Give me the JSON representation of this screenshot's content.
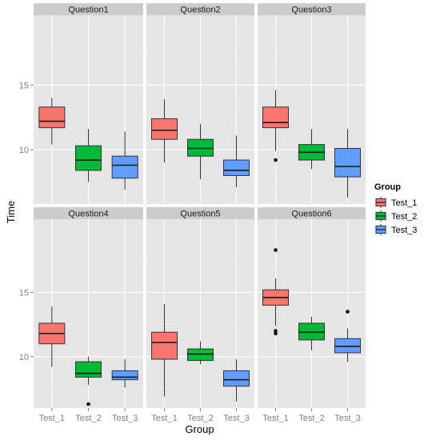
{
  "chart_data": {
    "type": "boxplot",
    "xlabel": "Group",
    "ylabel": "Time",
    "categories": [
      "Test_1",
      "Test_2",
      "Test_3"
    ],
    "y_ticks": [
      10,
      15
    ],
    "facet_ylim_top": [
      5.8,
      20.4
    ],
    "facet_ylim_bottom": [
      6.0,
      20.7
    ],
    "grid": true,
    "legend": {
      "title": "Group",
      "position": "right",
      "entries": [
        "Test_1",
        "Test_2",
        "Test_3"
      ]
    },
    "colors": {
      "Test_1": "#F8766D",
      "Test_2": "#00BA38",
      "Test_3": "#619CFF",
      "panel_bg": "#E5E5E5",
      "strip_bg": "#CCCCCC",
      "grid_major": "#FFFFFF",
      "grid_minor": "#F0F0F0"
    },
    "facets": [
      {
        "title": "Question1",
        "boxes": [
          {
            "group": "Test_1",
            "whisker_low": 10.4,
            "q1": 11.7,
            "median": 12.2,
            "q3": 13.3,
            "whisker_high": 14.0,
            "outliers": []
          },
          {
            "group": "Test_2",
            "whisker_low": 7.5,
            "q1": 8.4,
            "median": 9.2,
            "q3": 10.3,
            "whisker_high": 11.6,
            "outliers": []
          },
          {
            "group": "Test_3",
            "whisker_low": 6.9,
            "q1": 7.8,
            "median": 8.8,
            "q3": 9.5,
            "whisker_high": 11.4,
            "outliers": []
          }
        ]
      },
      {
        "title": "Question2",
        "boxes": [
          {
            "group": "Test_1",
            "whisker_low": 9.0,
            "q1": 10.8,
            "median": 11.5,
            "q3": 12.4,
            "whisker_high": 13.9,
            "outliers": []
          },
          {
            "group": "Test_2",
            "whisker_low": 7.7,
            "q1": 9.5,
            "median": 10.1,
            "q3": 10.8,
            "whisker_high": 12.0,
            "outliers": []
          },
          {
            "group": "Test_3",
            "whisker_low": 7.1,
            "q1": 8.0,
            "median": 8.4,
            "q3": 9.2,
            "whisker_high": 11.1,
            "outliers": []
          }
        ]
      },
      {
        "title": "Question3",
        "boxes": [
          {
            "group": "Test_1",
            "whisker_low": 9.9,
            "q1": 11.7,
            "median": 12.1,
            "q3": 13.3,
            "whisker_high": 14.6,
            "outliers": [
              9.2
            ]
          },
          {
            "group": "Test_2",
            "whisker_low": 8.5,
            "q1": 9.2,
            "median": 9.8,
            "q3": 10.4,
            "whisker_high": 11.6,
            "outliers": []
          },
          {
            "group": "Test_3",
            "whisker_low": 6.3,
            "q1": 7.9,
            "median": 8.7,
            "q3": 10.1,
            "whisker_high": 11.6,
            "outliers": []
          }
        ]
      },
      {
        "title": "Question4",
        "boxes": [
          {
            "group": "Test_1",
            "whisker_low": 9.2,
            "q1": 11.0,
            "median": 11.8,
            "q3": 12.6,
            "whisker_high": 13.9,
            "outliers": []
          },
          {
            "group": "Test_2",
            "whisker_low": 7.8,
            "q1": 8.4,
            "median": 8.7,
            "q3": 9.6,
            "whisker_high": 10.0,
            "outliers": [
              6.3
            ]
          },
          {
            "group": "Test_3",
            "whisker_low": 7.6,
            "q1": 8.2,
            "median": 8.4,
            "q3": 8.9,
            "whisker_high": 9.8,
            "outliers": []
          }
        ]
      },
      {
        "title": "Question5",
        "boxes": [
          {
            "group": "Test_1",
            "whisker_low": 6.9,
            "q1": 9.8,
            "median": 11.1,
            "q3": 11.9,
            "whisker_high": 14.1,
            "outliers": []
          },
          {
            "group": "Test_2",
            "whisker_low": 9.4,
            "q1": 9.7,
            "median": 10.2,
            "q3": 10.6,
            "whisker_high": 11.2,
            "outliers": []
          },
          {
            "group": "Test_3",
            "whisker_low": 6.5,
            "q1": 7.7,
            "median": 8.2,
            "q3": 8.9,
            "whisker_high": 9.8,
            "outliers": []
          }
        ]
      },
      {
        "title": "Question6",
        "boxes": [
          {
            "group": "Test_1",
            "whisker_low": 12.4,
            "q1": 14.0,
            "median": 14.6,
            "q3": 15.2,
            "whisker_high": 16.1,
            "outliers": [
              18.3,
              12.0,
              11.8
            ]
          },
          {
            "group": "Test_2",
            "whisker_low": 10.5,
            "q1": 11.3,
            "median": 11.9,
            "q3": 12.6,
            "whisker_high": 13.1,
            "outliers": []
          },
          {
            "group": "Test_3",
            "whisker_low": 9.6,
            "q1": 10.3,
            "median": 10.8,
            "q3": 11.4,
            "whisker_high": 12.2,
            "outliers": [
              13.5
            ]
          }
        ]
      }
    ]
  }
}
